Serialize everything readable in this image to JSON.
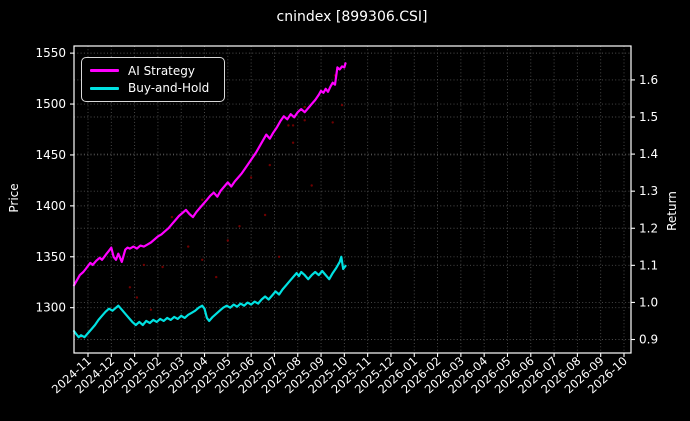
{
  "title": "cnindex [899306.CSI]",
  "labels": {
    "price_axis": "Price",
    "return_axis": "Return"
  },
  "chart_data": {
    "type": "line",
    "title": "cnindex [899306.CSI]",
    "background": "#000000",
    "grid": true,
    "grid_color": "#4f4f4f",
    "text_color": "#ffffff",
    "x_tick_labels": [
      "2024-11",
      "2024-12",
      "2025-01",
      "2025-02",
      "2025-03",
      "2025-04",
      "2025-05",
      "2025-06",
      "2025-07",
      "2025-08",
      "2025-09",
      "2025-10",
      "2025-11",
      "2025-12",
      "2026-01",
      "2026-02",
      "2026-03",
      "2026-04",
      "2026-05",
      "2026-06",
      "2026-07",
      "2026-08",
      "2026-09",
      "2026-10"
    ],
    "left_axis": {
      "label": "Price",
      "ticks": [
        1300,
        1350,
        1400,
        1450,
        1500,
        1550
      ],
      "range": [
        1255.5,
        1557
      ]
    },
    "right_axis": {
      "label": "Return",
      "ticks": [
        0.9,
        1.0,
        1.1,
        1.2,
        1.3,
        1.4,
        1.5,
        1.6
      ],
      "range": [
        0.8636,
        1.6915
      ]
    },
    "legend": {
      "position": "upper-left",
      "entries": [
        {
          "label": "AI Strategy",
          "color": "#ff00ff"
        },
        {
          "label": "Buy-and-Hold",
          "color": "#00e1e1"
        }
      ]
    },
    "series": [
      {
        "name": "AI Strategy",
        "color": "#ff00ff",
        "axis": "left",
        "points": [
          [
            -0.6,
            1322
          ],
          [
            -0.45,
            1328
          ],
          [
            -0.35,
            1332
          ],
          [
            -0.2,
            1335
          ],
          [
            -0.1,
            1338
          ],
          [
            0,
            1341
          ],
          [
            0.1,
            1344
          ],
          [
            0.2,
            1342
          ],
          [
            0.35,
            1346
          ],
          [
            0.5,
            1349
          ],
          [
            0.6,
            1347
          ],
          [
            0.7,
            1350
          ],
          [
            0.8,
            1353
          ],
          [
            0.9,
            1356
          ],
          [
            1.0,
            1359
          ],
          [
            1.1,
            1350
          ],
          [
            1.2,
            1347
          ],
          [
            1.3,
            1353
          ],
          [
            1.45,
            1345
          ],
          [
            1.6,
            1357
          ],
          [
            1.7,
            1359
          ],
          [
            1.8,
            1358
          ],
          [
            1.95,
            1360
          ],
          [
            2.1,
            1358
          ],
          [
            2.25,
            1361
          ],
          [
            2.4,
            1360
          ],
          [
            2.55,
            1362
          ],
          [
            2.7,
            1364
          ],
          [
            2.85,
            1367
          ],
          [
            3.0,
            1370
          ],
          [
            3.15,
            1372
          ],
          [
            3.3,
            1375
          ],
          [
            3.45,
            1378
          ],
          [
            3.6,
            1382
          ],
          [
            3.75,
            1386
          ],
          [
            3.9,
            1390
          ],
          [
            4.05,
            1393
          ],
          [
            4.2,
            1396
          ],
          [
            4.35,
            1392
          ],
          [
            4.5,
            1389
          ],
          [
            4.65,
            1394
          ],
          [
            4.8,
            1398
          ],
          [
            4.95,
            1402
          ],
          [
            5.1,
            1406
          ],
          [
            5.25,
            1410
          ],
          [
            5.4,
            1413
          ],
          [
            5.55,
            1409
          ],
          [
            5.7,
            1415
          ],
          [
            5.85,
            1419
          ],
          [
            6.0,
            1423
          ],
          [
            6.15,
            1419
          ],
          [
            6.3,
            1424
          ],
          [
            6.45,
            1428
          ],
          [
            6.6,
            1432
          ],
          [
            6.75,
            1437
          ],
          [
            6.9,
            1442
          ],
          [
            7.05,
            1447
          ],
          [
            7.2,
            1452
          ],
          [
            7.35,
            1458
          ],
          [
            7.5,
            1464
          ],
          [
            7.65,
            1470
          ],
          [
            7.8,
            1466
          ],
          [
            7.95,
            1472
          ],
          [
            8.1,
            1477
          ],
          [
            8.25,
            1483
          ],
          [
            8.4,
            1488
          ],
          [
            8.55,
            1485
          ],
          [
            8.7,
            1490
          ],
          [
            8.85,
            1487
          ],
          [
            9.0,
            1492
          ],
          [
            9.15,
            1495
          ],
          [
            9.3,
            1492
          ],
          [
            9.45,
            1496
          ],
          [
            9.6,
            1500
          ],
          [
            9.75,
            1504
          ],
          [
            9.9,
            1509
          ],
          [
            10.0,
            1513
          ],
          [
            10.1,
            1511
          ],
          [
            10.2,
            1515
          ],
          [
            10.3,
            1512
          ],
          [
            10.4,
            1517
          ],
          [
            10.5,
            1521
          ],
          [
            10.6,
            1519
          ],
          [
            10.7,
            1536
          ],
          [
            10.8,
            1534
          ],
          [
            10.9,
            1537
          ],
          [
            11.0,
            1536
          ],
          [
            11.05,
            1540
          ]
        ]
      },
      {
        "name": "Buy-and-Hold",
        "color": "#00e1e1",
        "axis": "left",
        "points": [
          [
            -0.6,
            1277
          ],
          [
            -0.5,
            1274
          ],
          [
            -0.4,
            1271
          ],
          [
            -0.3,
            1273
          ],
          [
            -0.15,
            1271
          ],
          [
            0,
            1275
          ],
          [
            0.15,
            1279
          ],
          [
            0.3,
            1283
          ],
          [
            0.45,
            1288
          ],
          [
            0.6,
            1292
          ],
          [
            0.75,
            1296
          ],
          [
            0.9,
            1299
          ],
          [
            1.05,
            1297
          ],
          [
            1.2,
            1300
          ],
          [
            1.3,
            1302
          ],
          [
            1.45,
            1298
          ],
          [
            1.6,
            1294
          ],
          [
            1.75,
            1290
          ],
          [
            1.9,
            1286
          ],
          [
            2.05,
            1283
          ],
          [
            2.2,
            1286
          ],
          [
            2.35,
            1283
          ],
          [
            2.5,
            1287
          ],
          [
            2.65,
            1285
          ],
          [
            2.8,
            1288
          ],
          [
            2.95,
            1286
          ],
          [
            3.1,
            1289
          ],
          [
            3.25,
            1287
          ],
          [
            3.4,
            1290
          ],
          [
            3.55,
            1288
          ],
          [
            3.7,
            1291
          ],
          [
            3.85,
            1289
          ],
          [
            4.0,
            1292
          ],
          [
            4.15,
            1290
          ],
          [
            4.3,
            1293
          ],
          [
            4.45,
            1295
          ],
          [
            4.6,
            1297
          ],
          [
            4.75,
            1300
          ],
          [
            4.9,
            1302
          ],
          [
            5.0,
            1299
          ],
          [
            5.1,
            1290
          ],
          [
            5.2,
            1287
          ],
          [
            5.35,
            1291
          ],
          [
            5.5,
            1294
          ],
          [
            5.65,
            1297
          ],
          [
            5.8,
            1300
          ],
          [
            5.95,
            1302
          ],
          [
            6.1,
            1300
          ],
          [
            6.25,
            1303
          ],
          [
            6.4,
            1301
          ],
          [
            6.55,
            1304
          ],
          [
            6.7,
            1302
          ],
          [
            6.85,
            1305
          ],
          [
            7.0,
            1303
          ],
          [
            7.15,
            1306
          ],
          [
            7.3,
            1304
          ],
          [
            7.45,
            1308
          ],
          [
            7.6,
            1311
          ],
          [
            7.75,
            1308
          ],
          [
            7.9,
            1312
          ],
          [
            8.05,
            1316
          ],
          [
            8.2,
            1313
          ],
          [
            8.35,
            1318
          ],
          [
            8.5,
            1322
          ],
          [
            8.65,
            1326
          ],
          [
            8.8,
            1330
          ],
          [
            8.95,
            1334
          ],
          [
            9.05,
            1331
          ],
          [
            9.15,
            1335
          ],
          [
            9.3,
            1332
          ],
          [
            9.45,
            1328
          ],
          [
            9.6,
            1332
          ],
          [
            9.75,
            1335
          ],
          [
            9.9,
            1332
          ],
          [
            10.05,
            1336
          ],
          [
            10.2,
            1332
          ],
          [
            10.35,
            1328
          ],
          [
            10.5,
            1334
          ],
          [
            10.65,
            1339
          ],
          [
            10.8,
            1345
          ],
          [
            10.87,
            1350
          ],
          [
            10.95,
            1338
          ],
          [
            11.05,
            1341
          ]
        ]
      }
    ],
    "markers": {
      "name": "trade-dots",
      "color": "#8b0000",
      "points": [
        [
          -0.3,
          1271
        ],
        [
          1.8,
          1320
        ],
        [
          2.1,
          1310
        ],
        [
          2.4,
          1342
        ],
        [
          2.7,
          1298
        ],
        [
          3.2,
          1340
        ],
        [
          3.6,
          1389
        ],
        [
          4.3,
          1360
        ],
        [
          4.9,
          1406
        ],
        [
          4.9,
          1347
        ],
        [
          5.5,
          1330
        ],
        [
          6.0,
          1366
        ],
        [
          6.5,
          1380
        ],
        [
          7.0,
          1428
        ],
        [
          7.6,
          1391
        ],
        [
          7.8,
          1440
        ],
        [
          8.2,
          1350
        ],
        [
          8.6,
          1479
        ],
        [
          8.8,
          1479
        ],
        [
          8.8,
          1462
        ],
        [
          9.3,
          1497
        ],
        [
          9.3,
          1484
        ],
        [
          9.6,
          1420
        ],
        [
          10.5,
          1482
        ],
        [
          10.6,
          1528
        ],
        [
          10.9,
          1499
        ]
      ]
    }
  }
}
